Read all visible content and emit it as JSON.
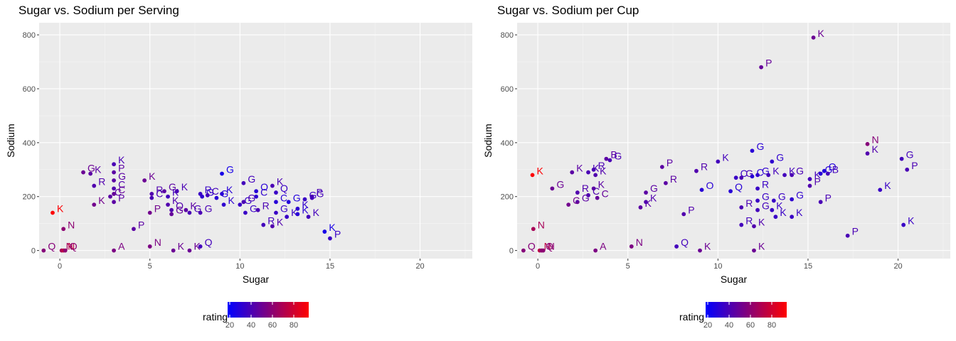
{
  "chart_data": [
    {
      "type": "scatter",
      "title": "Sugar vs. Sodium per Serving",
      "xlabel": "Sugar",
      "ylabel": "Sodium",
      "xlim": [
        -1.15,
        22.9
      ],
      "ylim": [
        -30,
        845
      ],
      "xticks": [
        0,
        5,
        10,
        15,
        20
      ],
      "yticks": [
        0,
        200,
        400,
        600,
        800
      ],
      "grid": true,
      "legend": {
        "title": "rating",
        "position": "bottom",
        "ticks": [
          20,
          40,
          60,
          80
        ],
        "low_color": "#0000ff",
        "high_color": "#ff0000"
      },
      "points": [
        {
          "x": -0.4,
          "y": 140,
          "label": "K",
          "rating": 93
        },
        {
          "x": -0.9,
          "y": 0,
          "label": "Q",
          "rating": 58
        },
        {
          "x": 0.1,
          "y": 0,
          "label": "N",
          "rating": 68
        },
        {
          "x": 0.2,
          "y": 0,
          "label": "N",
          "rating": 74
        },
        {
          "x": 0.3,
          "y": 0,
          "label": "Q",
          "rating": 60
        },
        {
          "x": 0.2,
          "y": 80,
          "label": "N",
          "rating": 60
        },
        {
          "x": 3.0,
          "y": 0,
          "label": "A",
          "rating": 55
        },
        {
          "x": 1.3,
          "y": 290,
          "label": "G",
          "rating": 50
        },
        {
          "x": 1.7,
          "y": 285,
          "label": "K",
          "rating": 45
        },
        {
          "x": 1.9,
          "y": 240,
          "label": "R",
          "rating": 42
        },
        {
          "x": 1.9,
          "y": 170,
          "label": "K",
          "rating": 52
        },
        {
          "x": 2.8,
          "y": 200,
          "label": "C",
          "rating": 45
        },
        {
          "x": 3.0,
          "y": 320,
          "label": "K",
          "rating": 40
        },
        {
          "x": 3.0,
          "y": 290,
          "label": "P",
          "rating": 45
        },
        {
          "x": 3.0,
          "y": 260,
          "label": "G",
          "rating": 45
        },
        {
          "x": 3.0,
          "y": 230,
          "label": "C",
          "rating": 42
        },
        {
          "x": 3.0,
          "y": 210,
          "label": "C",
          "rating": 48
        },
        {
          "x": 3.0,
          "y": 180,
          "label": "P",
          "rating": 45
        },
        {
          "x": 4.1,
          "y": 80,
          "label": "P",
          "rating": 45
        },
        {
          "x": 4.7,
          "y": 260,
          "label": "K",
          "rating": 50
        },
        {
          "x": 5.0,
          "y": 140,
          "label": "P",
          "rating": 52
        },
        {
          "x": 5.0,
          "y": 15,
          "label": "N",
          "rating": 55
        },
        {
          "x": 5.1,
          "y": 210,
          "label": "R",
          "rating": 42
        },
        {
          "x": 5.1,
          "y": 195,
          "label": "C",
          "rating": 40
        },
        {
          "x": 5.8,
          "y": 220,
          "label": "G",
          "rating": 45
        },
        {
          "x": 6.0,
          "y": 170,
          "label": "K",
          "rating": 42
        },
        {
          "x": 6.0,
          "y": 200,
          "label": "K",
          "rating": 38
        },
        {
          "x": 6.2,
          "y": 150,
          "label": "Q",
          "rating": 42
        },
        {
          "x": 6.2,
          "y": 135,
          "label": "G",
          "rating": 48
        },
        {
          "x": 6.3,
          "y": 0,
          "label": "K",
          "rating": 50
        },
        {
          "x": 6.5,
          "y": 220,
          "label": "K",
          "rating": 40
        },
        {
          "x": 7.0,
          "y": 150,
          "label": "K",
          "rating": 45
        },
        {
          "x": 7.2,
          "y": 140,
          "label": "G",
          "rating": 40
        },
        {
          "x": 7.2,
          "y": 0,
          "label": "K",
          "rating": 50
        },
        {
          "x": 7.8,
          "y": 15,
          "label": "Q",
          "rating": 38
        },
        {
          "x": 7.8,
          "y": 210,
          "label": "R",
          "rating": 35
        },
        {
          "x": 7.8,
          "y": 140,
          "label": "G",
          "rating": 40
        },
        {
          "x": 7.9,
          "y": 200,
          "label": "G",
          "rating": 32
        },
        {
          "x": 8.2,
          "y": 205,
          "label": "C",
          "rating": 38
        },
        {
          "x": 8.7,
          "y": 195,
          "label": "G",
          "rating": 30
        },
        {
          "x": 9.0,
          "y": 285,
          "label": "G",
          "rating": 25
        },
        {
          "x": 9.0,
          "y": 210,
          "label": "K",
          "rating": 30
        },
        {
          "x": 9.1,
          "y": 170,
          "label": "K",
          "rating": 32
        },
        {
          "x": 10.0,
          "y": 170,
          "label": "G",
          "rating": 35
        },
        {
          "x": 10.2,
          "y": 250,
          "label": "G",
          "rating": 38
        },
        {
          "x": 10.2,
          "y": 180,
          "label": "G",
          "rating": 40
        },
        {
          "x": 10.3,
          "y": 140,
          "label": "G",
          "rating": 35
        },
        {
          "x": 10.9,
          "y": 220,
          "label": "O",
          "rating": 30
        },
        {
          "x": 10.9,
          "y": 200,
          "label": "C",
          "rating": 32
        },
        {
          "x": 11.0,
          "y": 150,
          "label": "R",
          "rating": 40
        },
        {
          "x": 11.3,
          "y": 95,
          "label": "R",
          "rating": 38
        },
        {
          "x": 11.8,
          "y": 240,
          "label": "K",
          "rating": 40
        },
        {
          "x": 11.8,
          "y": 90,
          "label": "K",
          "rating": 42
        },
        {
          "x": 12.0,
          "y": 215,
          "label": "Q",
          "rating": 35
        },
        {
          "x": 12.0,
          "y": 180,
          "label": "C",
          "rating": 30
        },
        {
          "x": 12.0,
          "y": 140,
          "label": "G",
          "rating": 35
        },
        {
          "x": 12.6,
          "y": 125,
          "label": "K",
          "rating": 35
        },
        {
          "x": 12.7,
          "y": 180,
          "label": "G",
          "rating": 28
        },
        {
          "x": 13.2,
          "y": 155,
          "label": "K",
          "rating": 32
        },
        {
          "x": 13.2,
          "y": 135,
          "label": "K",
          "rating": 30
        },
        {
          "x": 13.6,
          "y": 190,
          "label": "G",
          "rating": 35
        },
        {
          "x": 13.8,
          "y": 125,
          "label": "K",
          "rating": 38
        },
        {
          "x": 14.0,
          "y": 200,
          "label": "P",
          "rating": 40
        },
        {
          "x": 14.0,
          "y": 195,
          "label": "G",
          "rating": 38
        },
        {
          "x": 14.7,
          "y": 70,
          "label": "K",
          "rating": 25
        },
        {
          "x": 15.0,
          "y": 45,
          "label": "P",
          "rating": 35
        }
      ]
    },
    {
      "type": "scatter",
      "title": "Sugar vs. Sodium per Cup",
      "xlabel": "Sugar",
      "ylabel": "Sodium",
      "xlim": [
        -1.15,
        22.9
      ],
      "ylim": [
        -30,
        845
      ],
      "xticks": [
        0,
        5,
        10,
        15,
        20
      ],
      "yticks": [
        0,
        200,
        400,
        600,
        800
      ],
      "grid": true,
      "legend": {
        "title": "rating",
        "position": "bottom",
        "ticks": [
          20,
          40,
          60,
          80
        ],
        "low_color": "#0000ff",
        "high_color": "#ff0000"
      },
      "points": [
        {
          "x": -0.3,
          "y": 280,
          "label": "K",
          "rating": 93
        },
        {
          "x": -0.8,
          "y": 0,
          "label": "Q",
          "rating": 58
        },
        {
          "x": -0.25,
          "y": 80,
          "label": "N",
          "rating": 68
        },
        {
          "x": 0.1,
          "y": 0,
          "label": "N",
          "rating": 74
        },
        {
          "x": 0.2,
          "y": 0,
          "label": "Q",
          "rating": 60
        },
        {
          "x": 0.3,
          "y": 0,
          "label": "N",
          "rating": 60
        },
        {
          "x": 3.2,
          "y": 0,
          "label": "A",
          "rating": 55
        },
        {
          "x": 0.8,
          "y": 230,
          "label": "G",
          "rating": 50
        },
        {
          "x": 1.9,
          "y": 290,
          "label": "K",
          "rating": 45
        },
        {
          "x": 2.2,
          "y": 215,
          "label": "R",
          "rating": 42
        },
        {
          "x": 2.2,
          "y": 180,
          "label": "G",
          "rating": 45
        },
        {
          "x": 1.7,
          "y": 170,
          "label": "C",
          "rating": 52
        },
        {
          "x": 2.8,
          "y": 290,
          "label": "K",
          "rating": 40
        },
        {
          "x": 3.1,
          "y": 300,
          "label": "R",
          "rating": 40
        },
        {
          "x": 3.2,
          "y": 280,
          "label": "K",
          "rating": 42
        },
        {
          "x": 3.1,
          "y": 230,
          "label": "K",
          "rating": 45
        },
        {
          "x": 2.8,
          "y": 205,
          "label": "C",
          "rating": 42
        },
        {
          "x": 3.3,
          "y": 195,
          "label": "C",
          "rating": 48
        },
        {
          "x": 3.8,
          "y": 340,
          "label": "B",
          "rating": 45
        },
        {
          "x": 4.0,
          "y": 335,
          "label": "G",
          "rating": 40
        },
        {
          "x": 5.2,
          "y": 15,
          "label": "N",
          "rating": 55
        },
        {
          "x": 5.7,
          "y": 160,
          "label": "K",
          "rating": 45
        },
        {
          "x": 6.0,
          "y": 180,
          "label": "K",
          "rating": 42
        },
        {
          "x": 6.0,
          "y": 215,
          "label": "G",
          "rating": 45
        },
        {
          "x": 6.9,
          "y": 310,
          "label": "P",
          "rating": 45
        },
        {
          "x": 7.1,
          "y": 250,
          "label": "R",
          "rating": 45
        },
        {
          "x": 7.7,
          "y": 15,
          "label": "Q",
          "rating": 38
        },
        {
          "x": 8.1,
          "y": 135,
          "label": "P",
          "rating": 42
        },
        {
          "x": 8.8,
          "y": 295,
          "label": "R",
          "rating": 42
        },
        {
          "x": 9.0,
          "y": 0,
          "label": "K",
          "rating": 50
        },
        {
          "x": 9.1,
          "y": 225,
          "label": "O",
          "rating": 30
        },
        {
          "x": 10.0,
          "y": 330,
          "label": "K",
          "rating": 38
        },
        {
          "x": 10.7,
          "y": 220,
          "label": "Q",
          "rating": 30
        },
        {
          "x": 11.0,
          "y": 270,
          "label": "C",
          "rating": 35
        },
        {
          "x": 11.3,
          "y": 160,
          "label": "R",
          "rating": 40
        },
        {
          "x": 11.3,
          "y": 95,
          "label": "R",
          "rating": 38
        },
        {
          "x": 11.3,
          "y": 270,
          "label": "G",
          "rating": 40
        },
        {
          "x": 11.9,
          "y": 370,
          "label": "G",
          "rating": 30
        },
        {
          "x": 11.9,
          "y": 275,
          "label": "C",
          "rating": 30
        },
        {
          "x": 12.0,
          "y": 90,
          "label": "K",
          "rating": 42
        },
        {
          "x": 12.0,
          "y": 0,
          "label": "K",
          "rating": 50
        },
        {
          "x": 12.2,
          "y": 280,
          "label": "G",
          "rating": 32
        },
        {
          "x": 12.2,
          "y": 230,
          "label": "R",
          "rating": 35
        },
        {
          "x": 12.2,
          "y": 185,
          "label": "G",
          "rating": 35
        },
        {
          "x": 12.2,
          "y": 150,
          "label": "G",
          "rating": 38
        },
        {
          "x": 12.4,
          "y": 680,
          "label": "P",
          "rating": 48
        },
        {
          "x": 12.8,
          "y": 280,
          "label": "K",
          "rating": 38
        },
        {
          "x": 13.0,
          "y": 330,
          "label": "G",
          "rating": 32
        },
        {
          "x": 13.1,
          "y": 185,
          "label": "G",
          "rating": 35
        },
        {
          "x": 13.0,
          "y": 150,
          "label": "K",
          "rating": 35
        },
        {
          "x": 13.2,
          "y": 125,
          "label": "K",
          "rating": 35
        },
        {
          "x": 13.7,
          "y": 280,
          "label": "K",
          "rating": 38
        },
        {
          "x": 14.1,
          "y": 280,
          "label": "G",
          "rating": 40
        },
        {
          "x": 14.1,
          "y": 190,
          "label": "G",
          "rating": 32
        },
        {
          "x": 14.1,
          "y": 125,
          "label": "K",
          "rating": 35
        },
        {
          "x": 15.1,
          "y": 265,
          "label": "K",
          "rating": 38
        },
        {
          "x": 15.1,
          "y": 240,
          "label": "P",
          "rating": 42
        },
        {
          "x": 15.3,
          "y": 790,
          "label": "K",
          "rating": 50
        },
        {
          "x": 15.7,
          "y": 285,
          "label": "G",
          "rating": 30
        },
        {
          "x": 15.7,
          "y": 180,
          "label": "P",
          "rating": 40
        },
        {
          "x": 15.9,
          "y": 295,
          "label": "O",
          "rating": 28
        },
        {
          "x": 16.1,
          "y": 285,
          "label": "B",
          "rating": 38
        },
        {
          "x": 17.2,
          "y": 55,
          "label": "P",
          "rating": 40
        },
        {
          "x": 18.3,
          "y": 395,
          "label": "N",
          "rating": 58
        },
        {
          "x": 18.3,
          "y": 360,
          "label": "K",
          "rating": 42
        },
        {
          "x": 19.0,
          "y": 225,
          "label": "K",
          "rating": 35
        },
        {
          "x": 20.2,
          "y": 340,
          "label": "G",
          "rating": 38
        },
        {
          "x": 20.5,
          "y": 300,
          "label": "P",
          "rating": 40
        },
        {
          "x": 20.3,
          "y": 95,
          "label": "K",
          "rating": 35
        }
      ]
    }
  ]
}
